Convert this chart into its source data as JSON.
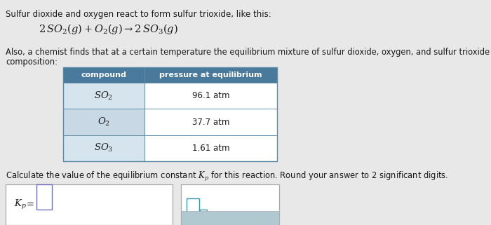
{
  "bg_color": "#e8e8e8",
  "white": "#ffffff",
  "header_bg": "#4a7a9b",
  "row_bg_light": "#d6e4ed",
  "row_bg_dark": "#c8d8e4",
  "border_color": "#5a8aa8",
  "text_color": "#1a1a1a",
  "line1": "Sulfur dioxide and oxygen react to form sulfur trioxide, like this:",
  "line2_part1": "Also, a chemist finds that at a certain temperature the equilibrium mixture of sulfur dioxide, oxygen, and sulfur trioxide has the fo",
  "line2_part2": "composition:",
  "col1_header": "compound",
  "col2_header": "pressure at equilibrium",
  "pressures": [
    "96.1 atm",
    "37.7 atm",
    "1.61 atm"
  ],
  "calc_line": "Calculate the value of the equilibrium constant ",
  "calc_line2": " for this reaction. Round your answer to 2 significant digits."
}
